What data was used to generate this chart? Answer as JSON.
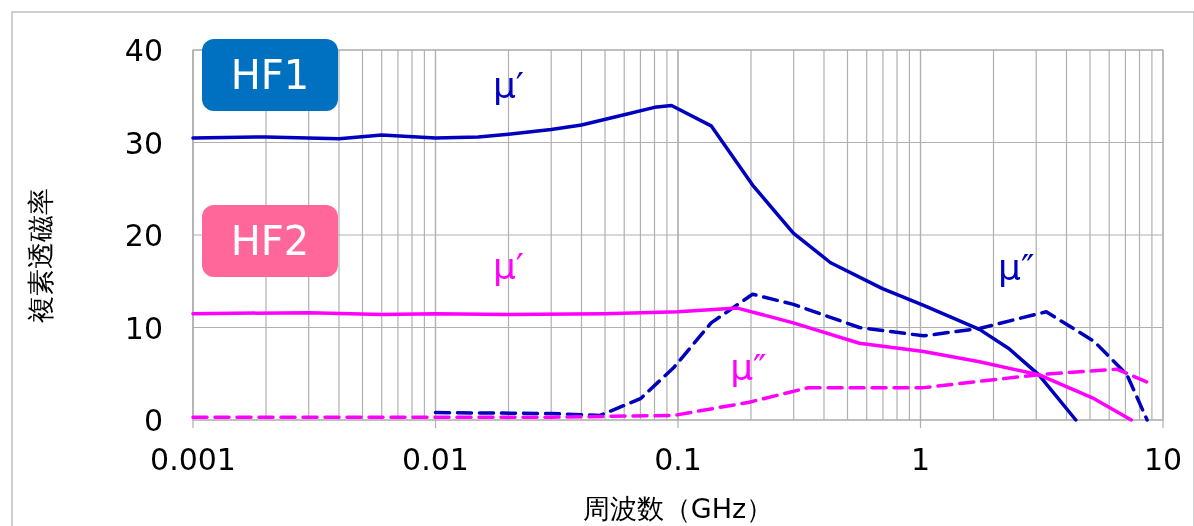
{
  "chart_data": {
    "type": "line",
    "xlabel": "周波数（GHz）",
    "ylabel": "複素透磁率",
    "log": "x",
    "xlim": [
      0.001,
      10
    ],
    "xticks": [
      0.001,
      0.01,
      0.1,
      1,
      10
    ],
    "ylim": [
      0,
      40
    ],
    "yticks": [
      0,
      10,
      20,
      30,
      40
    ],
    "grid": true,
    "marker": "none",
    "series": [
      {
        "name": "μ′",
        "color": "#0000bf",
        "line_style": "solid",
        "x": [
          0.001,
          0.002,
          0.004,
          0.006,
          0.01,
          0.015,
          0.02,
          0.03,
          0.04,
          0.06,
          0.08,
          0.094,
          0.137,
          0.203,
          0.299,
          0.426,
          0.697,
          1.03,
          1.75,
          2.32,
          3.07,
          4.37
        ],
        "values": [
          30.5,
          30.6,
          30.4,
          30.8,
          30.5,
          30.6,
          30.9,
          31.4,
          31.9,
          33.0,
          33.8,
          34.0,
          31.8,
          25.4,
          20.2,
          17.0,
          14.2,
          12.4,
          9.8,
          7.7,
          4.9,
          0
        ]
      },
      {
        "name": "μ″",
        "color": "#0000bf",
        "line_style": "dashed",
        "x": [
          0.01,
          0.03,
          0.0477,
          0.07,
          0.0963,
          0.137,
          0.203,
          0.299,
          0.56,
          1.03,
          1.75,
          3.3,
          5.2,
          7.1,
          8.6
        ],
        "values": [
          0.8,
          0.7,
          0.5,
          2.3,
          5.7,
          10.5,
          13.6,
          12.5,
          10.0,
          9.1,
          9.9,
          11.7,
          8.5,
          4.9,
          0
        ]
      },
      {
        "name": "μ′",
        "color": "#ff00ff",
        "line_style": "solid",
        "x": [
          0.001,
          0.003,
          0.006,
          0.01,
          0.02,
          0.05,
          0.1,
          0.176,
          0.299,
          0.56,
          1.03,
          1.75,
          3.07,
          5.2,
          7.4
        ],
        "values": [
          11.5,
          11.6,
          11.4,
          11.5,
          11.4,
          11.5,
          11.7,
          12.1,
          10.5,
          8.3,
          7.4,
          6.3,
          4.9,
          2.3,
          0
        ]
      },
      {
        "name": "μ″",
        "color": "#ff00ff",
        "line_style": "dashed",
        "x": [
          0.001,
          0.03,
          0.0963,
          0.195,
          0.345,
          1.03,
          3.07,
          6.44,
          8.6
        ],
        "values": [
          0.3,
          0.3,
          0.5,
          1.9,
          3.5,
          3.5,
          4.9,
          5.5,
          4.1
        ]
      }
    ],
    "annotations": [
      "HF1",
      "HF2"
    ]
  }
}
